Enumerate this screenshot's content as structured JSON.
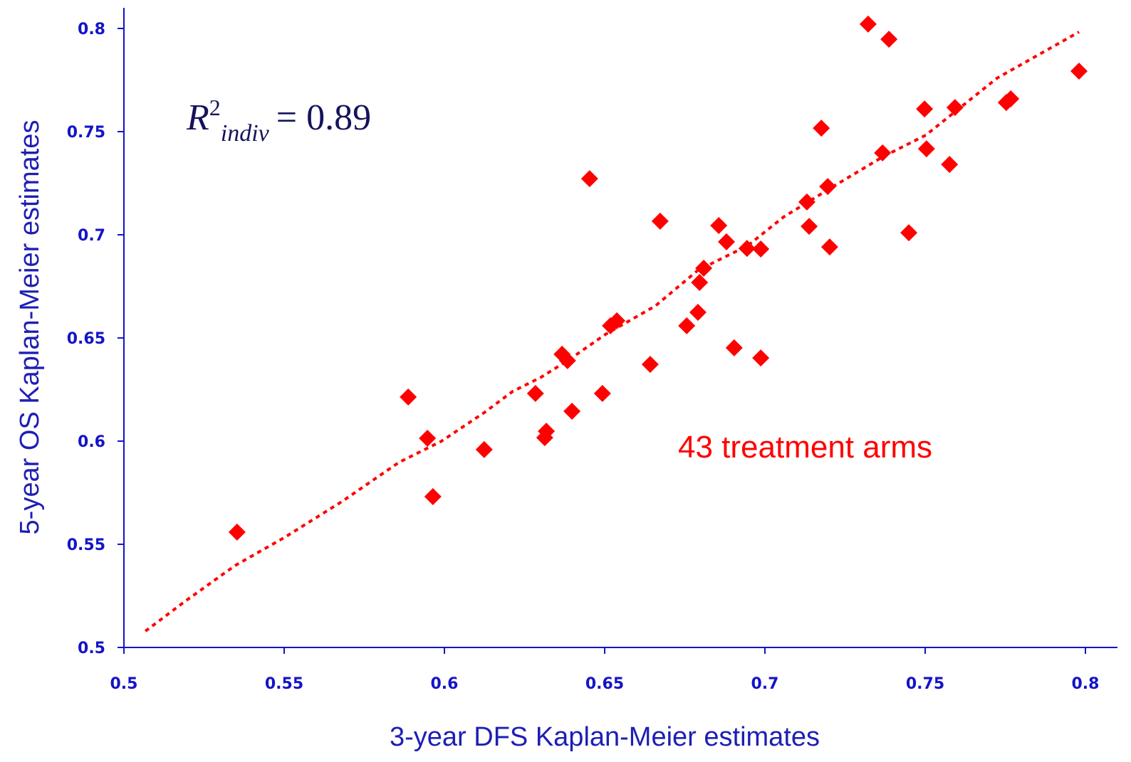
{
  "chart_data": {
    "type": "scatter",
    "x_label": "3-year DFS Kaplan-Meier estimates",
    "y_label": "5-year OS Kaplan-Meier estimates",
    "xlim": [
      0.5,
      0.81
    ],
    "ylim": [
      0.5,
      0.81
    ],
    "xticks": [
      0.5,
      0.55,
      0.6,
      0.65,
      0.7,
      0.75,
      0.8
    ],
    "yticks": [
      0.5,
      0.55,
      0.6,
      0.65,
      0.7,
      0.75,
      0.8
    ],
    "axis_color": "#1414c8",
    "grid": false,
    "series": [
      {
        "color": "#ff0000",
        "marker": "diamond",
        "x": [
          0.5353,
          0.5887,
          0.5947,
          0.5964,
          0.6124,
          0.6284,
          0.6313,
          0.6318,
          0.6367,
          0.6384,
          0.6398,
          0.6453,
          0.6493,
          0.6518,
          0.6538,
          0.6642,
          0.6673,
          0.6756,
          0.6791,
          0.6796,
          0.6809,
          0.6856,
          0.688,
          0.6904,
          0.6944,
          0.6987,
          0.6987,
          0.7131,
          0.7138,
          0.7176,
          0.7196,
          0.7202,
          0.7322,
          0.7367,
          0.7387,
          0.7449,
          0.7498,
          0.7504,
          0.7576,
          0.7593,
          0.7753,
          0.7767,
          0.798
        ],
        "values": [
          0.5559,
          0.6214,
          0.6014,
          0.5731,
          0.5959,
          0.6231,
          0.6017,
          0.6048,
          0.6421,
          0.639,
          0.6145,
          0.7272,
          0.6231,
          0.6559,
          0.6583,
          0.6372,
          0.7066,
          0.6559,
          0.6624,
          0.6769,
          0.6838,
          0.7045,
          0.6966,
          0.6452,
          0.6934,
          0.6931,
          0.6403,
          0.7159,
          0.7041,
          0.7517,
          0.7234,
          0.6941,
          0.8021,
          0.7397,
          0.7948,
          0.701,
          0.761,
          0.7417,
          0.7341,
          0.7617,
          0.7641,
          0.7659,
          0.7793
        ]
      }
    ],
    "trend": {
      "color": "#ff0000",
      "style": "dotted",
      "x": [
        0.5067,
        0.5191,
        0.5347,
        0.5502,
        0.568,
        0.5858,
        0.5991,
        0.6124,
        0.6213,
        0.6302,
        0.6391,
        0.6502,
        0.6658,
        0.6791,
        0.6947,
        0.7058,
        0.7213,
        0.7369,
        0.7502,
        0.7724,
        0.798
      ],
      "values": [
        0.5079,
        0.5224,
        0.5397,
        0.5534,
        0.5707,
        0.5897,
        0.6,
        0.6138,
        0.6241,
        0.631,
        0.6397,
        0.6517,
        0.6655,
        0.6828,
        0.6948,
        0.7086,
        0.7234,
        0.7379,
        0.7483,
        0.7759,
        0.7983
      ]
    },
    "annotations": {
      "r_squared": {
        "symbol": "R",
        "superscript": "2",
        "subscript": "indiv",
        "text": "= 0.89",
        "color": "#14145a"
      },
      "arms": {
        "text": "43 treatment arms",
        "color": "#ff0000"
      }
    }
  }
}
